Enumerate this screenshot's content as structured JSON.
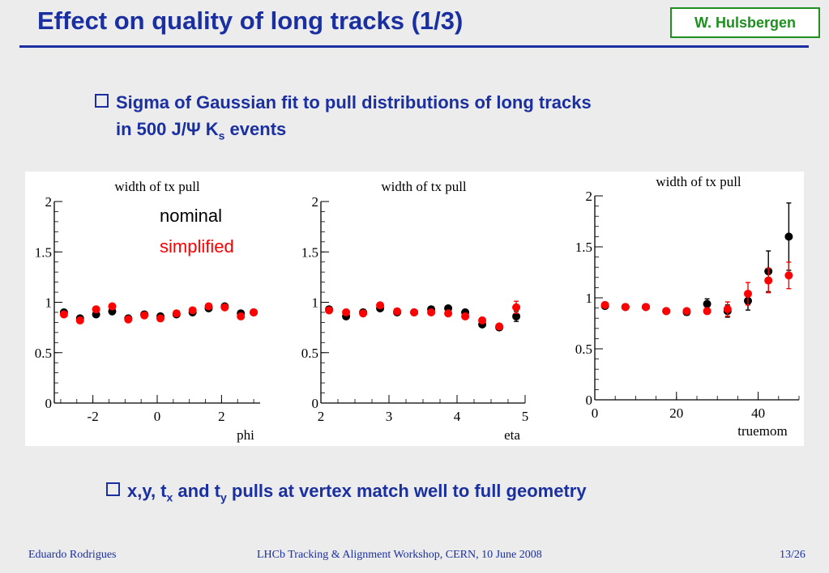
{
  "header": {
    "title": "Effect on quality of long tracks (1/3)",
    "author": "W. Hulsbergen"
  },
  "bullets": {
    "first_line1": "Sigma of Gaussian fit to pull distributions of long tracks",
    "first_line2_pre": "in 500 J/Ψ K",
    "first_line2_sub": "s",
    "first_line2_post": " events",
    "second_pre": "x,y, t",
    "second_sub1": "x",
    "second_mid": " and t",
    "second_sub2": "y",
    "second_post": " pulls at vertex match well to full geometry"
  },
  "footer": {
    "left": "Eduardo Rodrigues",
    "center": "LHCb Tracking & Alignment Workshop, CERN, 10 June 2008",
    "right": "13/26"
  },
  "colors": {
    "title_blue": "#1a2fa0",
    "author_green": "#1f8f1f",
    "nominal": "#000000",
    "simplified": "#ff0000"
  },
  "chart_data": [
    {
      "type": "scatter",
      "title": "width of tx pull",
      "xlabel": "phi",
      "xlim": [
        -3.2,
        3.2
      ],
      "ylim": [
        0,
        2
      ],
      "xticks": [
        -2,
        0,
        2
      ],
      "yticks": [
        0,
        0.5,
        1,
        1.5,
        2
      ],
      "legend": [
        "nominal",
        "simplified"
      ],
      "series": [
        {
          "name": "nominal",
          "x": [
            -2.9,
            -2.4,
            -1.9,
            -1.4,
            -0.9,
            -0.4,
            0.1,
            0.6,
            1.1,
            1.6,
            2.1,
            2.6,
            3.0
          ],
          "y": [
            0.9,
            0.84,
            0.88,
            0.91,
            0.84,
            0.88,
            0.86,
            0.88,
            0.9,
            0.94,
            0.96,
            0.89,
            0.9
          ]
        },
        {
          "name": "simplified",
          "x": [
            -2.9,
            -2.4,
            -1.9,
            -1.4,
            -0.9,
            -0.4,
            0.1,
            0.6,
            1.1,
            1.6,
            2.1,
            2.6,
            3.0
          ],
          "y": [
            0.88,
            0.82,
            0.93,
            0.96,
            0.83,
            0.87,
            0.84,
            0.89,
            0.92,
            0.96,
            0.95,
            0.86,
            0.9
          ]
        }
      ]
    },
    {
      "type": "scatter",
      "title": "width of tx pull",
      "xlabel": "eta",
      "xlim": [
        2,
        5
      ],
      "ylim": [
        0,
        2
      ],
      "xticks": [
        2,
        3,
        4,
        5
      ],
      "yticks": [
        0,
        0.5,
        1,
        1.5,
        2
      ],
      "series": [
        {
          "name": "nominal",
          "x": [
            2.12,
            2.37,
            2.62,
            2.87,
            3.12,
            3.37,
            3.62,
            3.87,
            4.12,
            4.37,
            4.62,
            4.87
          ],
          "y": [
            0.93,
            0.86,
            0.9,
            0.94,
            0.9,
            0.9,
            0.93,
            0.94,
            0.9,
            0.78,
            0.75,
            0.86
          ],
          "yerr": [
            0,
            0,
            0,
            0,
            0,
            0,
            0,
            0,
            0,
            0,
            0,
            0.05
          ]
        },
        {
          "name": "simplified",
          "x": [
            2.12,
            2.37,
            2.62,
            2.87,
            3.12,
            3.37,
            3.62,
            3.87,
            4.12,
            4.37,
            4.62,
            4.87
          ],
          "y": [
            0.92,
            0.9,
            0.89,
            0.97,
            0.91,
            0.9,
            0.9,
            0.89,
            0.86,
            0.82,
            0.76,
            0.95
          ],
          "yerr": [
            0,
            0,
            0,
            0,
            0,
            0,
            0,
            0,
            0,
            0,
            0,
            0.06
          ]
        }
      ]
    },
    {
      "type": "scatter",
      "title": "width of tx pull",
      "xlabel": "truemom",
      "xlim": [
        0,
        50
      ],
      "ylim": [
        0,
        2
      ],
      "xticks": [
        0,
        20,
        40
      ],
      "yticks": [
        0,
        0.5,
        1,
        1.5,
        2
      ],
      "series": [
        {
          "name": "nominal",
          "x": [
            2.5,
            7.5,
            12.5,
            17.5,
            22.5,
            27.5,
            32.5,
            37.5,
            42.5,
            47.5
          ],
          "y": [
            0.92,
            0.91,
            0.91,
            0.87,
            0.86,
            0.94,
            0.87,
            0.97,
            1.26,
            1.6
          ],
          "yerr": [
            0.02,
            0.02,
            0.02,
            0.02,
            0.03,
            0.05,
            0.06,
            0.09,
            0.2,
            0.33
          ]
        },
        {
          "name": "simplified",
          "x": [
            2.5,
            7.5,
            12.5,
            17.5,
            22.5,
            27.5,
            32.5,
            37.5,
            42.5,
            47.5
          ],
          "y": [
            0.93,
            0.91,
            0.91,
            0.87,
            0.87,
            0.87,
            0.89,
            1.04,
            1.17,
            1.22
          ],
          "yerr": [
            0.02,
            0.02,
            0.02,
            0.02,
            0.02,
            0.03,
            0.07,
            0.11,
            0.12,
            0.13
          ]
        }
      ]
    }
  ]
}
